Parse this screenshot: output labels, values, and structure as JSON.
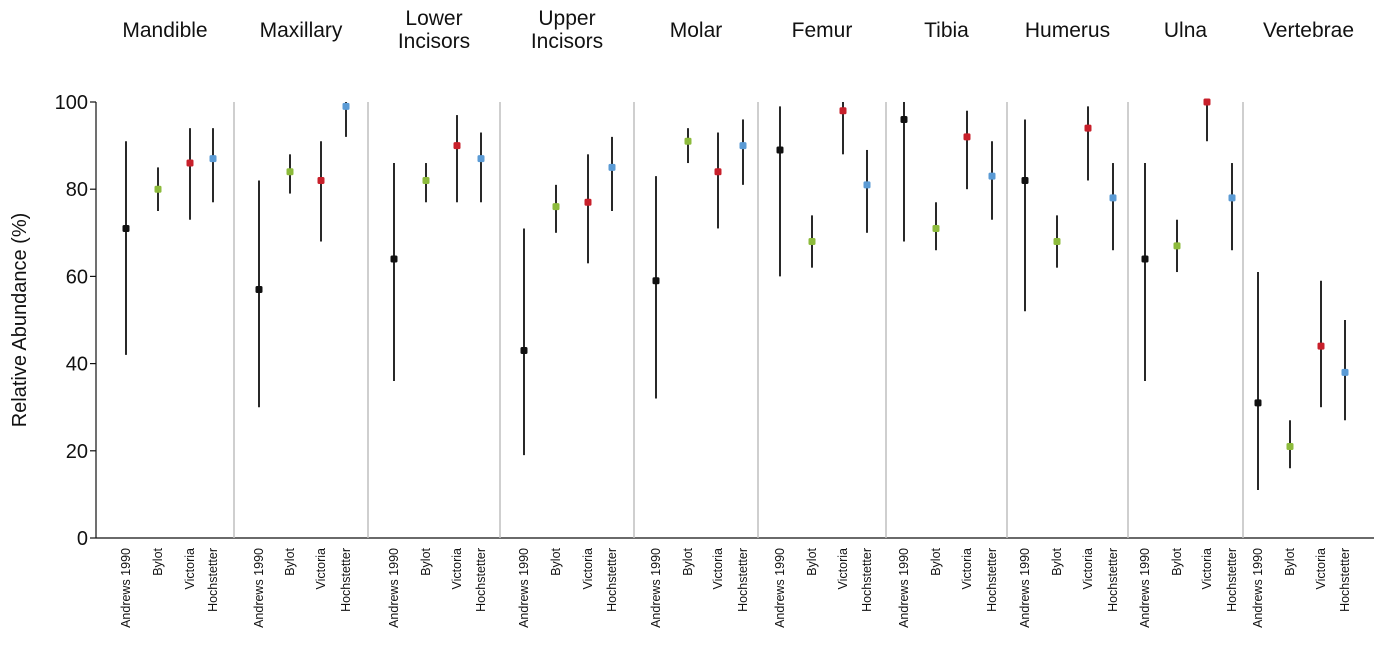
{
  "chart_data": {
    "type": "scatter",
    "ylabel": "Relative Abundance (%)",
    "ylim": [
      0,
      100
    ],
    "yticks": [
      0,
      20,
      40,
      60,
      80,
      100
    ],
    "categories": [
      "Andrews 1990",
      "Bylot",
      "Victoria",
      "Hochstetter"
    ],
    "colors": {
      "Andrews 1990": "#111111",
      "Bylot": "#8dbb3c",
      "Victoria": "#c8202b",
      "Hochstetter": "#5b9bd5"
    },
    "panels": [
      {
        "title": [
          "Mandible"
        ],
        "points": [
          {
            "y": 71,
            "low": 42,
            "high": 91
          },
          {
            "y": 80,
            "low": 75,
            "high": 85
          },
          {
            "y": 86,
            "low": 73,
            "high": 94
          },
          {
            "y": 87,
            "low": 77,
            "high": 94
          }
        ]
      },
      {
        "title": [
          "Maxillary"
        ],
        "points": [
          {
            "y": 57,
            "low": 30,
            "high": 82
          },
          {
            "y": 84,
            "low": 79,
            "high": 88
          },
          {
            "y": 82,
            "low": 68,
            "high": 91
          },
          {
            "y": 99,
            "low": 92,
            "high": 100
          }
        ]
      },
      {
        "title": [
          "Lower",
          "Incisors"
        ],
        "points": [
          {
            "y": 64,
            "low": 36,
            "high": 86
          },
          {
            "y": 82,
            "low": 77,
            "high": 86
          },
          {
            "y": 90,
            "low": 77,
            "high": 97
          },
          {
            "y": 87,
            "low": 77,
            "high": 93
          }
        ]
      },
      {
        "title": [
          "Upper",
          "Incisors"
        ],
        "points": [
          {
            "y": 43,
            "low": 19,
            "high": 71
          },
          {
            "y": 76,
            "low": 70,
            "high": 81
          },
          {
            "y": 77,
            "low": 63,
            "high": 88
          },
          {
            "y": 85,
            "low": 75,
            "high": 92
          }
        ]
      },
      {
        "title": [
          "Molar"
        ],
        "points": [
          {
            "y": 59,
            "low": 32,
            "high": 83
          },
          {
            "y": 91,
            "low": 86,
            "high": 94
          },
          {
            "y": 84,
            "low": 71,
            "high": 93
          },
          {
            "y": 90,
            "low": 81,
            "high": 96
          }
        ]
      },
      {
        "title": [
          "Femur"
        ],
        "points": [
          {
            "y": 89,
            "low": 60,
            "high": 99
          },
          {
            "y": 68,
            "low": 62,
            "high": 74
          },
          {
            "y": 98,
            "low": 88,
            "high": 100
          },
          {
            "y": 81,
            "low": 70,
            "high": 89
          }
        ]
      },
      {
        "title": [
          "Tibia"
        ],
        "points": [
          {
            "y": 96,
            "low": 68,
            "high": 100
          },
          {
            "y": 71,
            "low": 66,
            "high": 77
          },
          {
            "y": 92,
            "low": 80,
            "high": 98
          },
          {
            "y": 83,
            "low": 73,
            "high": 91
          }
        ]
      },
      {
        "title": [
          "Humerus"
        ],
        "points": [
          {
            "y": 82,
            "low": 52,
            "high": 96
          },
          {
            "y": 68,
            "low": 62,
            "high": 74
          },
          {
            "y": 94,
            "low": 82,
            "high": 99
          },
          {
            "y": 78,
            "low": 66,
            "high": 86
          }
        ]
      },
      {
        "title": [
          "Ulna"
        ],
        "points": [
          {
            "y": 64,
            "low": 36,
            "high": 86
          },
          {
            "y": 67,
            "low": 61,
            "high": 73
          },
          {
            "y": 100,
            "low": 91,
            "high": 100
          },
          {
            "y": 78,
            "low": 66,
            "high": 86
          }
        ]
      },
      {
        "title": [
          "Vertebrae"
        ],
        "points": [
          {
            "y": 31,
            "low": 11,
            "high": 61
          },
          {
            "y": 21,
            "low": 16,
            "high": 27
          },
          {
            "y": 44,
            "low": 30,
            "high": 59
          },
          {
            "y": 38,
            "low": 27,
            "high": 50
          }
        ]
      }
    ]
  }
}
